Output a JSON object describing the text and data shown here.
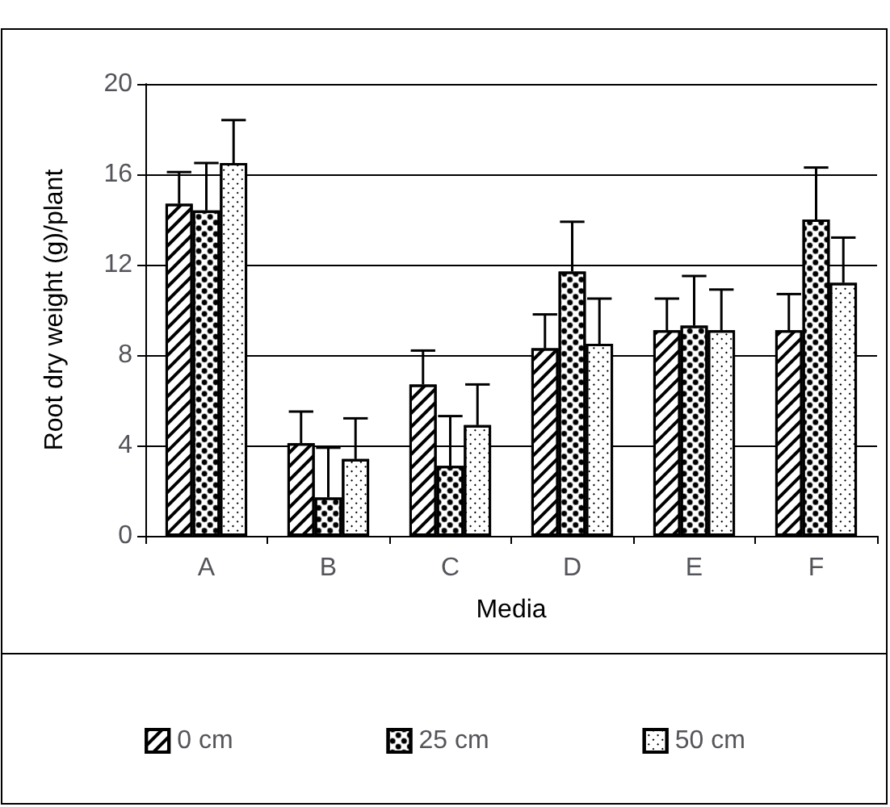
{
  "chart_data": {
    "type": "bar",
    "xlabel": "Media",
    "ylabel": "Root dry weight (g)/plant",
    "categories": [
      "A",
      "B",
      "C",
      "D",
      "E",
      "F"
    ],
    "series": [
      {
        "name": "0 cm",
        "color": "#ffffff",
        "values": [
          14.7,
          4.1,
          6.7,
          8.3,
          9.1,
          9.1
        ],
        "errors": [
          [
            14.7,
            16.1
          ],
          [
            4.1,
            5.5
          ],
          [
            6.7,
            8.2
          ],
          [
            8.3,
            9.8
          ],
          [
            9.1,
            10.5
          ],
          [
            9.1,
            10.7
          ]
        ]
      },
      {
        "name": "25 cm",
        "color": "#ffffff",
        "values": [
          14.4,
          1.7,
          3.1,
          11.7,
          9.3,
          14.0
        ],
        "errors": [
          [
            14.4,
            16.5
          ],
          [
            1.7,
            3.9
          ],
          [
            3.1,
            5.3
          ],
          [
            11.7,
            13.9
          ],
          [
            9.3,
            11.5
          ],
          [
            14.0,
            16.3
          ]
        ]
      },
      {
        "name": "50 cm",
        "color": "#ffffff",
        "values": [
          16.5,
          3.4,
          4.9,
          8.5,
          9.1,
          11.2
        ],
        "errors": [
          [
            16.5,
            18.4
          ],
          [
            3.4,
            5.2
          ],
          [
            4.9,
            6.7
          ],
          [
            8.5,
            10.5
          ],
          [
            9.1,
            10.9
          ],
          [
            11.2,
            13.2
          ]
        ]
      }
    ],
    "ylim": [
      0,
      20
    ],
    "yticks": [
      0,
      4,
      8,
      12,
      16,
      20
    ],
    "grid": "y",
    "legend": "bottom"
  }
}
